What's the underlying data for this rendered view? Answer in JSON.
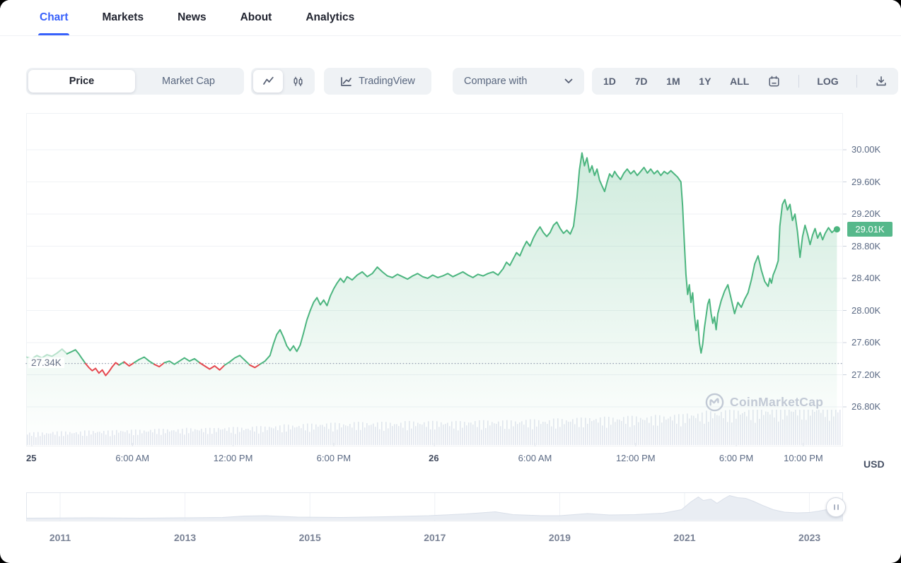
{
  "ui_colors": {
    "accent": "#3861FB",
    "text": "#222531",
    "muted": "#58667E",
    "pill": "#EFF2F5",
    "border": "#EFF2F5"
  },
  "nav": {
    "tabs": [
      {
        "label": "Chart",
        "active": true
      },
      {
        "label": "Markets"
      },
      {
        "label": "News"
      },
      {
        "label": "About"
      },
      {
        "label": "Analytics"
      }
    ]
  },
  "toolbar": {
    "metric": {
      "options": [
        "Price",
        "Market Cap"
      ],
      "selected": "Price"
    },
    "chart_type": {
      "options": [
        "line",
        "candlestick"
      ],
      "selected": "line"
    },
    "tradingview_label": "TradingView",
    "compare_label": "Compare with",
    "ranges": [
      "1D",
      "7D",
      "1M",
      "1Y",
      "ALL"
    ],
    "log_label": "LOG"
  },
  "watermark": {
    "text": "CoinMarketCap"
  },
  "chart_data": {
    "type": "line",
    "title": "Bitcoin price, 1-day view (values in thousands of USD)",
    "symbol_currency": "USD",
    "last_price": 29.01,
    "last_price_label": "29.01K",
    "prev_close": 27.34,
    "prev_close_label": "27.34K",
    "ylim": [
      26.3,
      30.46
    ],
    "x_unit": "hours since day 25 00:00",
    "xlim_hours": [
      -0.34,
      48.36
    ],
    "grid": "horizontal",
    "legend": "none",
    "faded_before_t": 2.3,
    "y_ticks": [
      {
        "v": 30.0,
        "label": "30.00K"
      },
      {
        "v": 29.6,
        "label": "29.60K"
      },
      {
        "v": 29.2,
        "label": "29.20K"
      },
      {
        "v": 28.8,
        "label": "28.80K"
      },
      {
        "v": 28.4,
        "label": "28.40K"
      },
      {
        "v": 28.0,
        "label": "28.00K"
      },
      {
        "v": 27.6,
        "label": "27.60K"
      },
      {
        "v": 27.2,
        "label": "27.20K"
      },
      {
        "v": 26.8,
        "label": "26.80K"
      }
    ],
    "x_ticks": [
      {
        "t": 0,
        "label": "25",
        "bold": true
      },
      {
        "t": 6,
        "label": "6:00 AM"
      },
      {
        "t": 12,
        "label": "12:00 PM"
      },
      {
        "t": 18,
        "label": "6:00 PM"
      },
      {
        "t": 24,
        "label": "26",
        "bold": true
      },
      {
        "t": 30,
        "label": "6:00 AM"
      },
      {
        "t": 36,
        "label": "12:00 PM"
      },
      {
        "t": 42,
        "label": "6:00 PM"
      },
      {
        "t": 46,
        "label": "10:00 PM"
      }
    ],
    "colors": {
      "up": "#4CB57F",
      "down": "#E5484F",
      "fill_top": "rgba(76,181,127,0.30)",
      "fill_bottom": "rgba(76,181,127,0)",
      "badge": "#56B88B",
      "volume": "#E3E7EF",
      "grid": "#EFF2F5",
      "dotted": "#9AA4B5",
      "navigator_fill": "#E9EDF3",
      "navigator_stroke": "#D9DFE9"
    },
    "series": [
      [
        -0.3,
        27.42
      ],
      [
        0,
        27.4
      ],
      [
        0.3,
        27.44
      ],
      [
        0.6,
        27.41
      ],
      [
        0.9,
        27.45
      ],
      [
        1.2,
        27.43
      ],
      [
        1.5,
        27.47
      ],
      [
        1.8,
        27.52
      ],
      [
        2.1,
        27.46
      ],
      [
        2.4,
        27.49
      ],
      [
        2.6,
        27.51
      ],
      [
        2.8,
        27.46
      ],
      [
        3.0,
        27.4
      ],
      [
        3.2,
        27.34
      ],
      [
        3.4,
        27.29
      ],
      [
        3.6,
        27.25
      ],
      [
        3.8,
        27.28
      ],
      [
        4.0,
        27.22
      ],
      [
        4.2,
        27.26
      ],
      [
        4.4,
        27.19
      ],
      [
        4.6,
        27.24
      ],
      [
        4.8,
        27.3
      ],
      [
        5.0,
        27.35
      ],
      [
        5.2,
        27.32
      ],
      [
        5.5,
        27.36
      ],
      [
        5.8,
        27.31
      ],
      [
        6.1,
        27.35
      ],
      [
        6.4,
        27.39
      ],
      [
        6.7,
        27.42
      ],
      [
        7.0,
        27.37
      ],
      [
        7.3,
        27.33
      ],
      [
        7.6,
        27.3
      ],
      [
        7.9,
        27.35
      ],
      [
        8.2,
        27.37
      ],
      [
        8.5,
        27.33
      ],
      [
        8.8,
        27.37
      ],
      [
        9.1,
        27.41
      ],
      [
        9.4,
        27.37
      ],
      [
        9.7,
        27.4
      ],
      [
        10.0,
        27.35
      ],
      [
        10.3,
        27.31
      ],
      [
        10.6,
        27.27
      ],
      [
        10.9,
        27.31
      ],
      [
        11.2,
        27.26
      ],
      [
        11.5,
        27.32
      ],
      [
        11.8,
        27.36
      ],
      [
        12.1,
        27.41
      ],
      [
        12.4,
        27.44
      ],
      [
        12.7,
        27.38
      ],
      [
        13.0,
        27.32
      ],
      [
        13.3,
        27.29
      ],
      [
        13.6,
        27.33
      ],
      [
        13.9,
        27.37
      ],
      [
        14.2,
        27.44
      ],
      [
        14.4,
        27.58
      ],
      [
        14.6,
        27.7
      ],
      [
        14.8,
        27.76
      ],
      [
        15.0,
        27.67
      ],
      [
        15.2,
        27.56
      ],
      [
        15.4,
        27.5
      ],
      [
        15.6,
        27.56
      ],
      [
        15.8,
        27.49
      ],
      [
        16.0,
        27.57
      ],
      [
        16.2,
        27.72
      ],
      [
        16.4,
        27.88
      ],
      [
        16.6,
        28.0
      ],
      [
        16.8,
        28.1
      ],
      [
        17.0,
        28.16
      ],
      [
        17.2,
        28.07
      ],
      [
        17.4,
        28.13
      ],
      [
        17.6,
        28.06
      ],
      [
        17.8,
        28.18
      ],
      [
        18.0,
        28.27
      ],
      [
        18.2,
        28.34
      ],
      [
        18.4,
        28.4
      ],
      [
        18.6,
        28.35
      ],
      [
        18.8,
        28.42
      ],
      [
        19.1,
        28.38
      ],
      [
        19.4,
        28.44
      ],
      [
        19.7,
        28.48
      ],
      [
        20.0,
        28.42
      ],
      [
        20.3,
        28.46
      ],
      [
        20.6,
        28.54
      ],
      [
        20.9,
        28.48
      ],
      [
        21.2,
        28.43
      ],
      [
        21.5,
        28.41
      ],
      [
        21.8,
        28.45
      ],
      [
        22.1,
        28.42
      ],
      [
        22.4,
        28.39
      ],
      [
        22.7,
        28.43
      ],
      [
        23.0,
        28.46
      ],
      [
        23.3,
        28.42
      ],
      [
        23.6,
        28.4
      ],
      [
        23.9,
        28.44
      ],
      [
        24.2,
        28.41
      ],
      [
        24.5,
        28.43
      ],
      [
        24.8,
        28.46
      ],
      [
        25.1,
        28.42
      ],
      [
        25.4,
        28.45
      ],
      [
        25.7,
        28.48
      ],
      [
        26.0,
        28.44
      ],
      [
        26.3,
        28.41
      ],
      [
        26.6,
        28.45
      ],
      [
        26.9,
        28.43
      ],
      [
        27.2,
        28.46
      ],
      [
        27.5,
        28.48
      ],
      [
        27.8,
        28.44
      ],
      [
        28.1,
        28.52
      ],
      [
        28.3,
        28.6
      ],
      [
        28.5,
        28.56
      ],
      [
        28.7,
        28.64
      ],
      [
        28.9,
        28.72
      ],
      [
        29.1,
        28.68
      ],
      [
        29.3,
        28.78
      ],
      [
        29.5,
        28.86
      ],
      [
        29.7,
        28.8
      ],
      [
        29.9,
        28.9
      ],
      [
        30.1,
        28.98
      ],
      [
        30.3,
        29.04
      ],
      [
        30.5,
        28.97
      ],
      [
        30.7,
        28.92
      ],
      [
        30.9,
        28.97
      ],
      [
        31.1,
        29.06
      ],
      [
        31.3,
        29.1
      ],
      [
        31.5,
        29.02
      ],
      [
        31.7,
        28.96
      ],
      [
        31.9,
        29.0
      ],
      [
        32.1,
        28.95
      ],
      [
        32.3,
        29.05
      ],
      [
        32.5,
        29.4
      ],
      [
        32.65,
        29.75
      ],
      [
        32.8,
        29.96
      ],
      [
        32.95,
        29.8
      ],
      [
        33.1,
        29.9
      ],
      [
        33.25,
        29.72
      ],
      [
        33.4,
        29.8
      ],
      [
        33.55,
        29.68
      ],
      [
        33.7,
        29.76
      ],
      [
        33.85,
        29.62
      ],
      [
        34.0,
        29.55
      ],
      [
        34.15,
        29.48
      ],
      [
        34.3,
        29.6
      ],
      [
        34.45,
        29.7
      ],
      [
        34.6,
        29.66
      ],
      [
        34.75,
        29.73
      ],
      [
        34.9,
        29.68
      ],
      [
        35.1,
        29.63
      ],
      [
        35.3,
        29.71
      ],
      [
        35.5,
        29.76
      ],
      [
        35.7,
        29.7
      ],
      [
        35.9,
        29.74
      ],
      [
        36.1,
        29.68
      ],
      [
        36.3,
        29.73
      ],
      [
        36.5,
        29.78
      ],
      [
        36.7,
        29.71
      ],
      [
        36.9,
        29.76
      ],
      [
        37.1,
        29.7
      ],
      [
        37.3,
        29.74
      ],
      [
        37.5,
        29.68
      ],
      [
        37.7,
        29.73
      ],
      [
        37.9,
        29.7
      ],
      [
        38.1,
        29.74
      ],
      [
        38.3,
        29.7
      ],
      [
        38.5,
        29.66
      ],
      [
        38.7,
        29.6
      ],
      [
        38.8,
        29.3
      ],
      [
        38.9,
        28.85
      ],
      [
        39.0,
        28.45
      ],
      [
        39.1,
        28.2
      ],
      [
        39.2,
        28.32
      ],
      [
        39.3,
        28.1
      ],
      [
        39.4,
        28.22
      ],
      [
        39.5,
        27.95
      ],
      [
        39.6,
        27.75
      ],
      [
        39.7,
        27.88
      ],
      [
        39.8,
        27.6
      ],
      [
        39.9,
        27.47
      ],
      [
        40.0,
        27.58
      ],
      [
        40.1,
        27.78
      ],
      [
        40.3,
        28.08
      ],
      [
        40.4,
        28.14
      ],
      [
        40.5,
        27.96
      ],
      [
        40.6,
        27.84
      ],
      [
        40.7,
        27.92
      ],
      [
        40.8,
        27.76
      ],
      [
        40.9,
        27.96
      ],
      [
        41.1,
        28.12
      ],
      [
        41.3,
        28.24
      ],
      [
        41.5,
        28.32
      ],
      [
        41.7,
        28.14
      ],
      [
        41.9,
        27.96
      ],
      [
        42.1,
        28.1
      ],
      [
        42.3,
        28.04
      ],
      [
        42.5,
        28.14
      ],
      [
        42.7,
        28.22
      ],
      [
        42.9,
        28.38
      ],
      [
        43.1,
        28.58
      ],
      [
        43.3,
        28.68
      ],
      [
        43.5,
        28.5
      ],
      [
        43.7,
        28.36
      ],
      [
        43.9,
        28.3
      ],
      [
        44.0,
        28.4
      ],
      [
        44.1,
        28.34
      ],
      [
        44.2,
        28.44
      ],
      [
        44.35,
        28.52
      ],
      [
        44.5,
        28.62
      ],
      [
        44.6,
        29.05
      ],
      [
        44.75,
        29.32
      ],
      [
        44.9,
        29.38
      ],
      [
        45.05,
        29.25
      ],
      [
        45.2,
        29.32
      ],
      [
        45.35,
        29.12
      ],
      [
        45.5,
        29.2
      ],
      [
        45.65,
        28.98
      ],
      [
        45.8,
        28.66
      ],
      [
        45.95,
        28.92
      ],
      [
        46.1,
        29.06
      ],
      [
        46.25,
        28.95
      ],
      [
        46.4,
        28.82
      ],
      [
        46.55,
        28.94
      ],
      [
        46.7,
        29.02
      ],
      [
        46.85,
        28.9
      ],
      [
        47.0,
        28.97
      ],
      [
        47.15,
        28.88
      ],
      [
        47.3,
        28.96
      ],
      [
        47.5,
        29.03
      ],
      [
        47.7,
        28.97
      ],
      [
        47.85,
        29.0
      ],
      [
        48.0,
        29.01
      ]
    ],
    "volume_profile_hourly": [
      15,
      16,
      16,
      17,
      17,
      18,
      18,
      19,
      19,
      20,
      20,
      21,
      21,
      22,
      23,
      24,
      25,
      26,
      26,
      27,
      27,
      27,
      28,
      28,
      28,
      28,
      29,
      29,
      29,
      30,
      30,
      31,
      32,
      33,
      33,
      34,
      34,
      35,
      36,
      38,
      40,
      41,
      42,
      43,
      44,
      45,
      46,
      47,
      47
    ],
    "navigator": {
      "x_label_years": [
        "2011",
        "2013",
        "2015",
        "2017",
        "2019",
        "2021",
        "2023"
      ],
      "area_year_height": [
        [
          2010.46,
          3
        ],
        [
          2011.5,
          3.5
        ],
        [
          2012.3,
          3
        ],
        [
          2013.0,
          3.5
        ],
        [
          2013.6,
          4
        ],
        [
          2013.95,
          6
        ],
        [
          2014.3,
          6.5
        ],
        [
          2014.8,
          4.5
        ],
        [
          2015.5,
          4
        ],
        [
          2016.2,
          5
        ],
        [
          2016.9,
          6.5
        ],
        [
          2017.5,
          9
        ],
        [
          2017.97,
          12
        ],
        [
          2018.25,
          8
        ],
        [
          2018.7,
          6.5
        ],
        [
          2019.0,
          6.5
        ],
        [
          2019.45,
          9.5
        ],
        [
          2019.8,
          7.5
        ],
        [
          2020.2,
          8
        ],
        [
          2020.65,
          10
        ],
        [
          2020.95,
          15
        ],
        [
          2021.1,
          26
        ],
        [
          2021.22,
          33
        ],
        [
          2021.3,
          28
        ],
        [
          2021.42,
          30
        ],
        [
          2021.52,
          24
        ],
        [
          2021.62,
          30
        ],
        [
          2021.72,
          35
        ],
        [
          2021.85,
          32
        ],
        [
          2021.98,
          31
        ],
        [
          2022.1,
          27
        ],
        [
          2022.25,
          21
        ],
        [
          2022.42,
          15
        ],
        [
          2022.6,
          11.5
        ],
        [
          2022.8,
          10.5
        ],
        [
          2023.0,
          11
        ],
        [
          2023.15,
          13
        ],
        [
          2023.3,
          15.5
        ],
        [
          2023.42,
          13.5
        ],
        [
          2023.53,
          17
        ]
      ]
    }
  }
}
